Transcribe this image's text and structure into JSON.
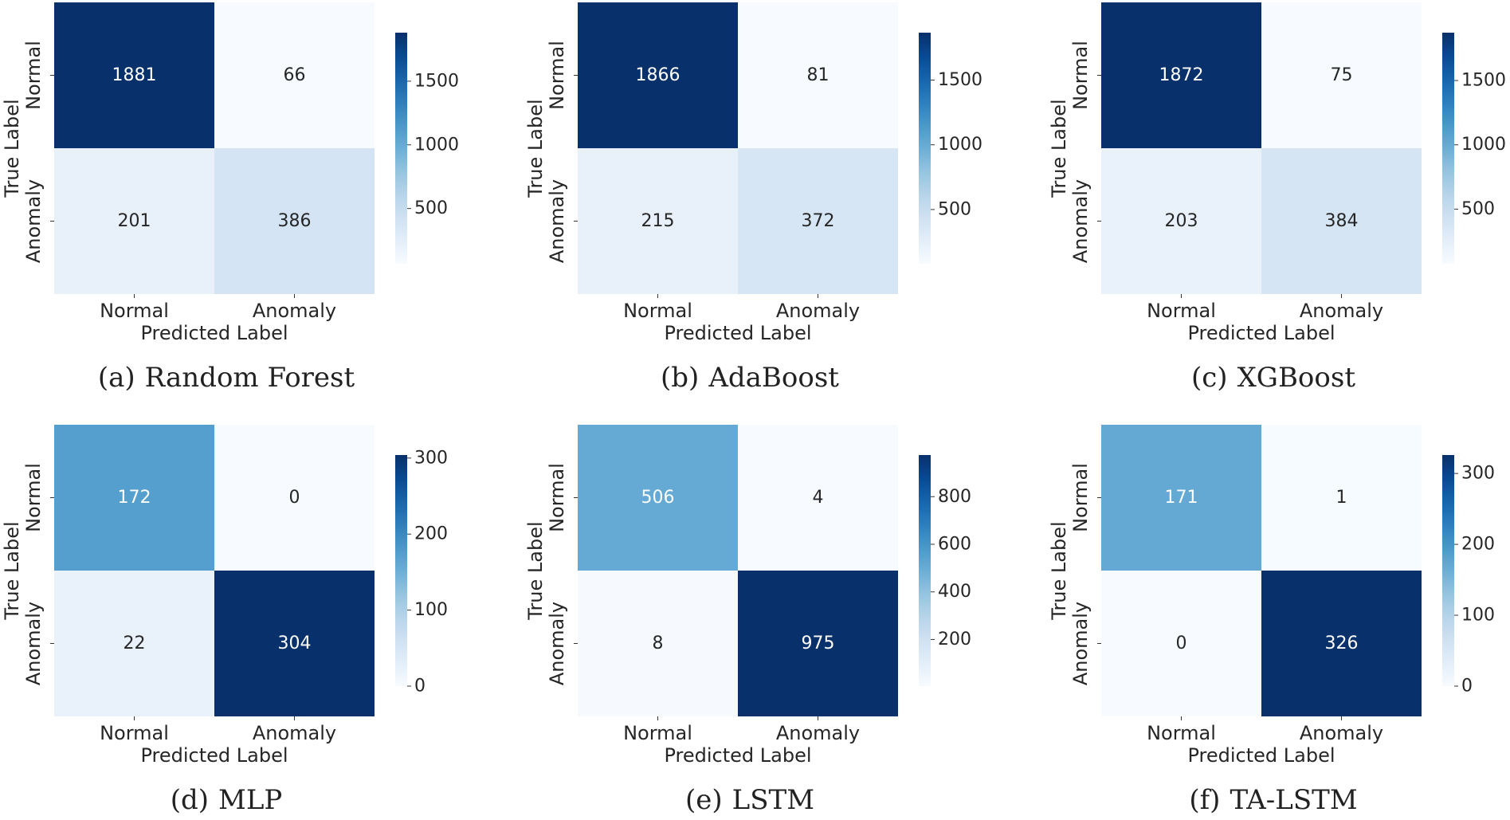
{
  "chart_data": [
    {
      "type": "heatmap",
      "caption_label": "(a)",
      "caption_text": "Random Forest",
      "rows": [
        "Normal",
        "Anomaly"
      ],
      "cols": [
        "Normal",
        "Anomaly"
      ],
      "values": [
        [
          1881,
          66
        ],
        [
          201,
          386
        ]
      ],
      "xlabel": "Predicted Label",
      "ylabel": "True Label",
      "colorbar": {
        "min": 66,
        "max": 1881,
        "ticks": [
          500,
          1000,
          1500
        ]
      },
      "colormap": "Blues"
    },
    {
      "type": "heatmap",
      "caption_label": "(b)",
      "caption_text": "AdaBoost",
      "rows": [
        "Normal",
        "Anomaly"
      ],
      "cols": [
        "Normal",
        "Anomaly"
      ],
      "values": [
        [
          1866,
          81
        ],
        [
          215,
          372
        ]
      ],
      "xlabel": "Predicted Label",
      "ylabel": "True Label",
      "colorbar": {
        "min": 81,
        "max": 1866,
        "ticks": [
          500,
          1000,
          1500
        ]
      },
      "colormap": "Blues"
    },
    {
      "type": "heatmap",
      "caption_label": "(c)",
      "caption_text": "XGBoost",
      "rows": [
        "Normal",
        "Anomaly"
      ],
      "cols": [
        "Normal",
        "Anomaly"
      ],
      "values": [
        [
          1872,
          75
        ],
        [
          203,
          384
        ]
      ],
      "xlabel": "Predicted Label",
      "ylabel": "True Label",
      "colorbar": {
        "min": 75,
        "max": 1872,
        "ticks": [
          500,
          1000,
          1500
        ]
      },
      "colormap": "Blues"
    },
    {
      "type": "heatmap",
      "caption_label": "(d)",
      "caption_text": "MLP",
      "rows": [
        "Normal",
        "Anomaly"
      ],
      "cols": [
        "Normal",
        "Anomaly"
      ],
      "values": [
        [
          172,
          0
        ],
        [
          22,
          304
        ]
      ],
      "xlabel": "Predicted Label",
      "ylabel": "True Label",
      "colorbar": {
        "min": 0,
        "max": 304,
        "ticks": [
          0,
          100,
          200,
          300
        ]
      },
      "colormap": "Blues"
    },
    {
      "type": "heatmap",
      "caption_label": "(e)",
      "caption_text": "LSTM",
      "rows": [
        "Normal",
        "Anomaly"
      ],
      "cols": [
        "Normal",
        "Anomaly"
      ],
      "values": [
        [
          506,
          4
        ],
        [
          8,
          975
        ]
      ],
      "xlabel": "Predicted Label",
      "ylabel": "True Label",
      "colorbar": {
        "min": 4,
        "max": 975,
        "ticks": [
          200,
          400,
          600,
          800
        ]
      },
      "colormap": "Blues"
    },
    {
      "type": "heatmap",
      "caption_label": "(f)",
      "caption_text": "TA-LSTM",
      "rows": [
        "Normal",
        "Anomaly"
      ],
      "cols": [
        "Normal",
        "Anomaly"
      ],
      "values": [
        [
          171,
          1
        ],
        [
          0,
          326
        ]
      ],
      "xlabel": "Predicted Label",
      "ylabel": "True Label",
      "colorbar": {
        "min": 0,
        "max": 326,
        "ticks": [
          0,
          100,
          200,
          300
        ]
      },
      "colormap": "Blues"
    }
  ]
}
